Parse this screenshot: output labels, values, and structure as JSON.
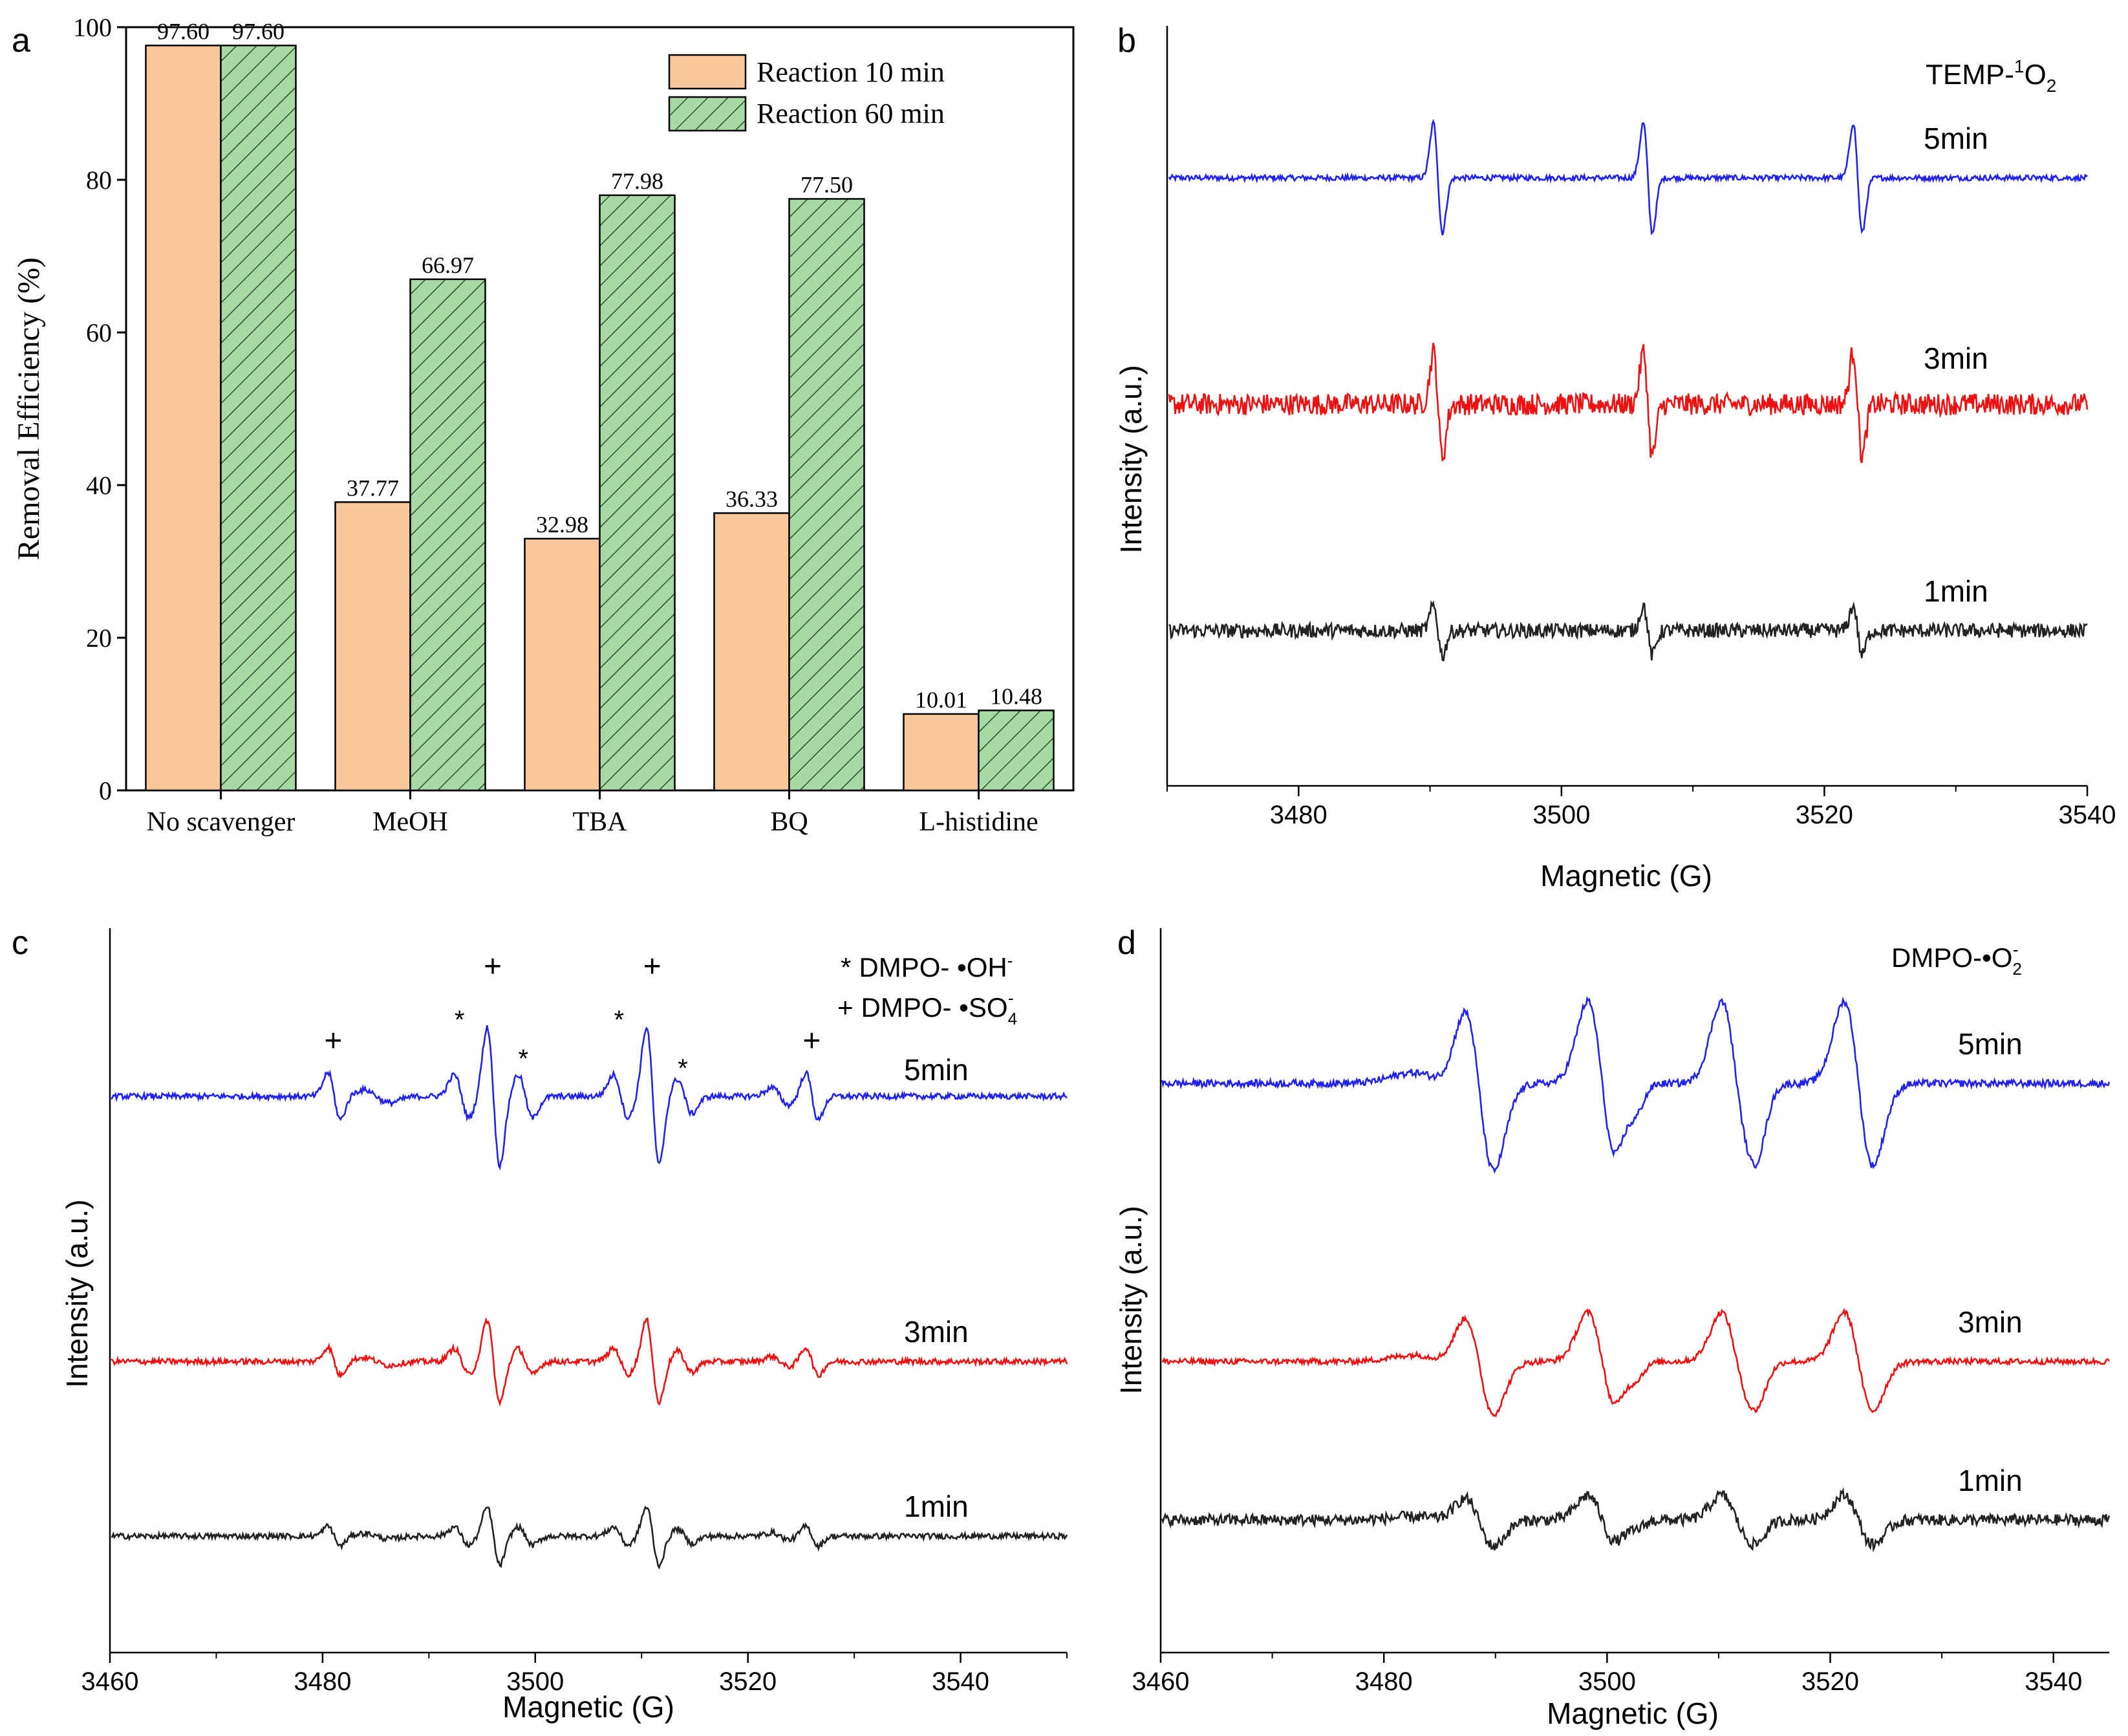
{
  "chart_data": [
    {
      "panel": "a",
      "type": "bar",
      "ylabel": "Removal Efficiency (%)",
      "xlabel": "",
      "ylim": [
        0,
        100
      ],
      "yticks": [
        0,
        20,
        40,
        60,
        80,
        100
      ],
      "categories": [
        "No scavenger",
        "MeOH",
        "TBA",
        "BQ",
        "L-histidine"
      ],
      "series": [
        {
          "name": "Reaction 10 min",
          "values": [
            97.6,
            37.77,
            32.98,
            36.33,
            10.01
          ],
          "labels": [
            "97.60",
            "37.77",
            "32.98",
            "36.33",
            "10.01"
          ],
          "color": "#f9c79c",
          "pattern": "solid"
        },
        {
          "name": "Reaction 60 min",
          "values": [
            97.6,
            66.97,
            77.98,
            77.5,
            10.48
          ],
          "labels": [
            "97.60",
            "66.97",
            "77.98",
            "77.50",
            "10.48"
          ],
          "color": "#a6d9a4",
          "pattern": "hatch"
        }
      ],
      "legend_position": "top-right"
    },
    {
      "panel": "b",
      "type": "line",
      "xlabel": "Magnetic (G)",
      "ylabel": "Intensity (a.u.)",
      "xlim": [
        3470,
        3540
      ],
      "xticks": [
        3480,
        3500,
        3520,
        3540
      ],
      "annotation": "TEMP-1O2",
      "species": {
        "main": "TEMP-",
        "sup": "1",
        "core": "O",
        "sub": "2"
      },
      "peak_centers": [
        3490.5,
        3506.5,
        3522.5
      ],
      "series": [
        {
          "name": "5min",
          "color": "#2222ee",
          "amplitude": 1.0,
          "noise": 0.03
        },
        {
          "name": "3min",
          "color": "#ee1111",
          "amplitude": 0.95,
          "noise": 0.12
        },
        {
          "name": "1min",
          "color": "#222222",
          "amplitude": 0.45,
          "noise": 0.08
        }
      ]
    },
    {
      "panel": "c",
      "type": "line",
      "xlabel": "Magnetic (G)",
      "ylabel": "Intensity (a.u.)",
      "xlim": [
        3460,
        3550
      ],
      "xticks": [
        3460,
        3480,
        3500,
        3520,
        3540
      ],
      "legend_lines": [
        {
          "marker": "*",
          "text": "DMPO- •OH",
          "sup": "-"
        },
        {
          "marker": "+",
          "text": "DMPO- •SO",
          "sub": "4",
          "sup": "-"
        }
      ],
      "plus_markers_at": [
        3481,
        3496,
        3511,
        3526
      ],
      "star_markers_at": [
        3493,
        3499,
        3508,
        3514
      ],
      "series": [
        {
          "name": "5min",
          "color": "#2222ee",
          "amplitude": 1.0,
          "noise": 0.04
        },
        {
          "name": "3min",
          "color": "#ee1111",
          "amplitude": 0.6,
          "noise": 0.04
        },
        {
          "name": "1min",
          "color": "#222222",
          "amplitude": 0.42,
          "noise": 0.04
        }
      ]
    },
    {
      "panel": "d",
      "type": "line",
      "xlabel": "Magnetic (G)",
      "ylabel": "Intensity (a.u.)",
      "xlim": [
        3460,
        3545
      ],
      "xticks": [
        3460,
        3480,
        3500,
        3520,
        3540
      ],
      "annotation": "DMPO-•O2-",
      "species": {
        "main": "DMPO-•O",
        "sub": "2",
        "sup": "-"
      },
      "series": [
        {
          "name": "5min",
          "color": "#2222ee",
          "amplitude": 1.0,
          "noise": 0.05
        },
        {
          "name": "3min",
          "color": "#ee1111",
          "amplitude": 0.6,
          "noise": 0.04
        },
        {
          "name": "1min",
          "color": "#222222",
          "amplitude": 0.3,
          "noise": 0.08
        }
      ]
    }
  ],
  "panel_letters": [
    "a",
    "b",
    "c",
    "d"
  ]
}
